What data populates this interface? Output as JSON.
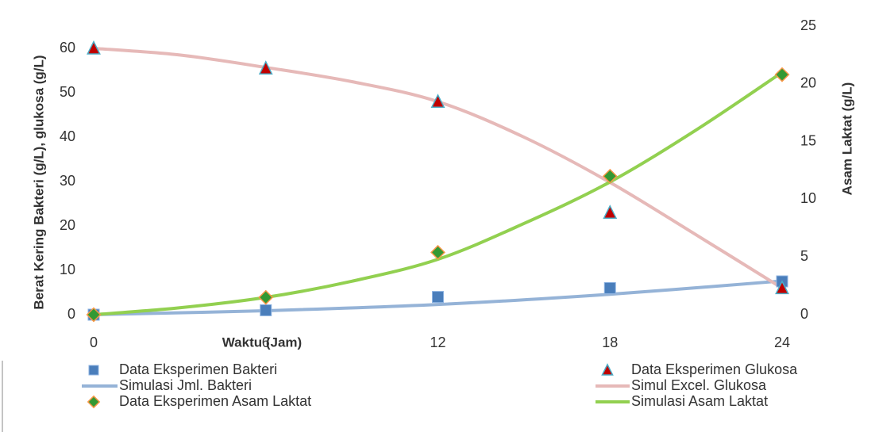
{
  "chart_data": {
    "type": "line",
    "xlabel": "Waktu (Jam)",
    "ylabel": "Berat Kering Bakteri (g/L), glukosa (g/L)",
    "y2label": "Asam Laktat (g/L)",
    "xlim": [
      0,
      24
    ],
    "xticks": [
      0,
      6,
      12,
      18,
      24
    ],
    "ylim": [
      0,
      65
    ],
    "yticks": [
      0,
      10,
      20,
      30,
      40,
      50,
      60
    ],
    "y2lim": [
      0,
      25
    ],
    "y2ticks": [
      0,
      5,
      10,
      15,
      20,
      25
    ],
    "series": [
      {
        "name": "Data Eksperimen Bakteri",
        "color": "#4a7ebb",
        "marker": "square",
        "x": [
          0,
          6,
          12,
          18,
          24
        ],
        "values": [
          0,
          1,
          4,
          6,
          7.5
        ]
      },
      {
        "name": "Data Eksperimen Glukosa",
        "color": "#c00000",
        "marker": "triangle",
        "x": [
          0,
          6,
          12,
          18,
          24
        ],
        "values": [
          60,
          55.5,
          48,
          23,
          6
        ]
      },
      {
        "name": "Simulasi Jml. Bakteri",
        "color": "#95b3d7",
        "marker": "line",
        "x": [
          0,
          6,
          12,
          18,
          24
        ],
        "values": [
          0,
          0.9,
          2.3,
          4.6,
          7.6
        ]
      },
      {
        "name": "Simul Excel. Glukosa",
        "color": "#e6b9b8",
        "marker": "line",
        "x": [
          0,
          3,
          6,
          9,
          12,
          15,
          18,
          21,
          24
        ],
        "values": [
          60,
          58.5,
          55.7,
          52.5,
          48,
          40,
          29.8,
          18,
          6
        ]
      },
      {
        "name": "Data Eksperimen Asam Laktat",
        "color": "#339933",
        "marker": "diamond",
        "axis": "y2",
        "x": [
          0,
          6,
          12,
          18,
          24
        ],
        "values": [
          0,
          1.5,
          5.4,
          12,
          20.8
        ]
      },
      {
        "name": "Simulasi Asam Laktat",
        "color": "#92d050",
        "marker": "line",
        "axis": "y2",
        "x": [
          0,
          3,
          6,
          9,
          12,
          15,
          18,
          21,
          24
        ],
        "values": [
          0,
          0.6,
          1.5,
          2.9,
          4.8,
          7.9,
          11.5,
          16,
          21
        ]
      }
    ]
  }
}
